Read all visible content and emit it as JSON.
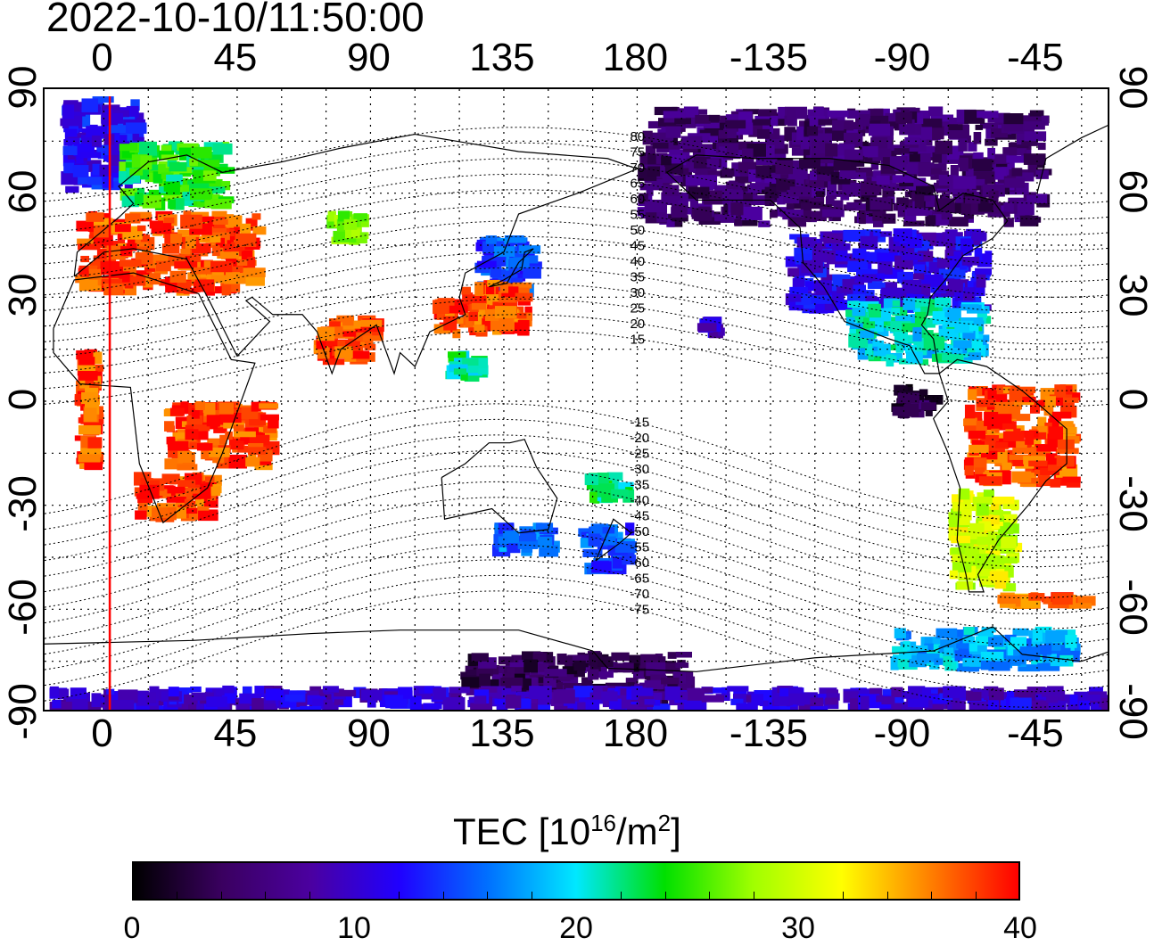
{
  "title": "2022-10-10/11:50:00",
  "axes": {
    "top_lon_labels": [
      "0",
      "45",
      "90",
      "135",
      "180",
      "-135",
      "-90",
      "-45"
    ],
    "bottom_lon_labels": [
      "0",
      "45",
      "90",
      "135",
      "180",
      "-135",
      "-90",
      "-45"
    ],
    "left_lat_labels": [
      "90",
      "60",
      "30",
      "0",
      "-30",
      "-60",
      "-90"
    ],
    "right_lat_labels": [
      "90",
      "60",
      "30",
      "0",
      "-30",
      "-60",
      "-90"
    ]
  },
  "map": {
    "lon_range": [
      -20,
      340
    ],
    "lat_range": [
      -90,
      90
    ],
    "grid": "dotted",
    "marker_line_lon": 2,
    "marker_line_color": "#ff0000",
    "contour_labels": [
      "80",
      "75",
      "70",
      "65",
      "60",
      "55",
      "50",
      "45",
      "40",
      "35",
      "30",
      "25",
      "20",
      "15",
      "-15",
      "-20",
      "-25",
      "-30",
      "-35",
      "-40",
      "-45",
      "-50",
      "-55",
      "-60",
      "-65",
      "-70",
      "-75"
    ]
  },
  "colorbar": {
    "title_prefix": "TEC  [10",
    "title_exp": "16",
    "title_mid": "/m",
    "title_exp2": "2",
    "title_suffix": "]",
    "min": 0,
    "max": 40,
    "tick_labels": [
      "0",
      "10",
      "20",
      "30",
      "40"
    ],
    "colors": [
      "#000000",
      "#3a0060",
      "#4b00a0",
      "#2000ff",
      "#0070ff",
      "#00e8ff",
      "#00e000",
      "#a0ff00",
      "#ffff00",
      "#ff8000",
      "#ff0000"
    ]
  },
  "tec_regions": [
    {
      "name": "arctic-europe",
      "lon": [
        -15,
        15
      ],
      "lat": [
        60,
        88
      ],
      "tec": 12
    },
    {
      "name": "scandinavia",
      "lon": [
        5,
        45
      ],
      "lat": [
        55,
        75
      ],
      "tec": 24
    },
    {
      "name": "europe",
      "lon": [
        -10,
        55
      ],
      "lat": [
        30,
        55
      ],
      "tec": 38
    },
    {
      "name": "africa-south",
      "lon": [
        10,
        40
      ],
      "lat": [
        -35,
        -20
      ],
      "tec": 38
    },
    {
      "name": "africa-scatter",
      "lon": [
        20,
        60
      ],
      "lat": [
        -20,
        0
      ],
      "tec": 38
    },
    {
      "name": "west-africa",
      "lon": [
        -10,
        0
      ],
      "lat": [
        -20,
        15
      ],
      "tec": 38
    },
    {
      "name": "india",
      "lon": [
        70,
        95
      ],
      "lat": [
        10,
        25
      ],
      "tec": 38
    },
    {
      "name": "central-asia",
      "lon": [
        75,
        90
      ],
      "lat": [
        45,
        55
      ],
      "tec": 28
    },
    {
      "name": "japan-north",
      "lon": [
        125,
        148
      ],
      "lat": [
        30,
        48
      ],
      "tec": 14
    },
    {
      "name": "east-asia",
      "lon": [
        110,
        145
      ],
      "lat": [
        18,
        35
      ],
      "tec": 38
    },
    {
      "name": "philippines",
      "lon": [
        115,
        130
      ],
      "lat": [
        5,
        15
      ],
      "tec": 22
    },
    {
      "name": "australia-south",
      "lon": [
        130,
        155
      ],
      "lat": [
        -45,
        -35
      ],
      "tec": 16
    },
    {
      "name": "new-zealand",
      "lon": [
        160,
        180
      ],
      "lat": [
        -50,
        -35
      ],
      "tec": 15
    },
    {
      "name": "pacific-islands",
      "lon": [
        162,
        180
      ],
      "lat": [
        -30,
        -20
      ],
      "tec": 22
    },
    {
      "name": "north-america",
      "lon": [
        180,
        320
      ],
      "lat": [
        50,
        85
      ],
      "tec": 5
    },
    {
      "name": "usa",
      "lon": [
        230,
        300
      ],
      "lat": [
        25,
        50
      ],
      "tec": 11
    },
    {
      "name": "central-america",
      "lon": [
        250,
        300
      ],
      "lat": [
        10,
        30
      ],
      "tec": 20
    },
    {
      "name": "hawaii",
      "lon": [
        200,
        210
      ],
      "lat": [
        18,
        25
      ],
      "tec": 10
    },
    {
      "name": "ecuador",
      "lon": [
        265,
        285
      ],
      "lat": [
        -5,
        5
      ],
      "tec": 3
    },
    {
      "name": "brazil",
      "lon": [
        290,
        330
      ],
      "lat": [
        -25,
        5
      ],
      "tec": 38
    },
    {
      "name": "argentina",
      "lon": [
        285,
        310
      ],
      "lat": [
        -55,
        -25
      ],
      "tec": 30
    },
    {
      "name": "south-atlantic",
      "lon": [
        300,
        335
      ],
      "lat": [
        -60,
        -55
      ],
      "tec": 37
    },
    {
      "name": "antarctic-pacific",
      "lon": [
        120,
        200
      ],
      "lat": [
        -88,
        -72
      ],
      "tec": 4
    },
    {
      "name": "antarctic-ring",
      "lon": [
        -20,
        340
      ],
      "lat": [
        -90,
        -82
      ],
      "tec": 10
    },
    {
      "name": "south-ocean",
      "lon": [
        265,
        330
      ],
      "lat": [
        -78,
        -65
      ],
      "tec": 18
    }
  ]
}
